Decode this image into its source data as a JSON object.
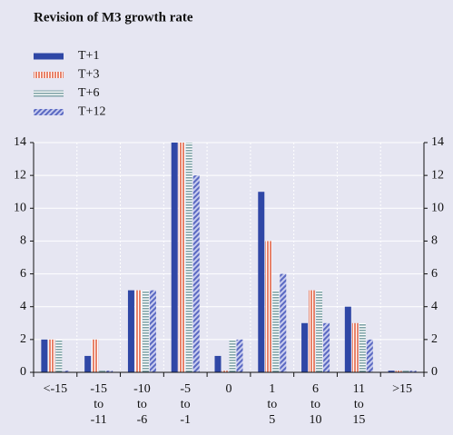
{
  "chart_data": {
    "type": "bar",
    "title": "Revision of M3 growth rate",
    "categories": [
      "<-15",
      "-15 to -11",
      "-10 to -6",
      "-5 to -1",
      "0",
      "1 to 5",
      "6 to 10",
      "11 to 15",
      ">15"
    ],
    "series": [
      {
        "name": "T+1",
        "color": "#2f47a6",
        "hatch": "solid",
        "values": [
          2,
          1,
          5,
          14,
          1,
          11,
          3,
          4,
          0.1
        ]
      },
      {
        "name": "T+3",
        "color": "#e8826a",
        "hatch": "vertical",
        "values": [
          2,
          2,
          5,
          14,
          0.1,
          8,
          5,
          3,
          0.1
        ]
      },
      {
        "name": "T+6",
        "color": "#7fa3a8",
        "hatch": "horizontal",
        "values": [
          2,
          0.1,
          5,
          14,
          2,
          5,
          5,
          3,
          0.1
        ]
      },
      {
        "name": "T+12",
        "color": "#5a69c2",
        "hatch": "diagonal",
        "values": [
          0.1,
          0.1,
          5,
          12,
          2,
          6,
          3,
          2,
          0.1
        ]
      }
    ],
    "ylim": [
      0,
      14
    ],
    "yticks": [
      0,
      2,
      4,
      6,
      8,
      10,
      12,
      14
    ],
    "grid": true
  }
}
